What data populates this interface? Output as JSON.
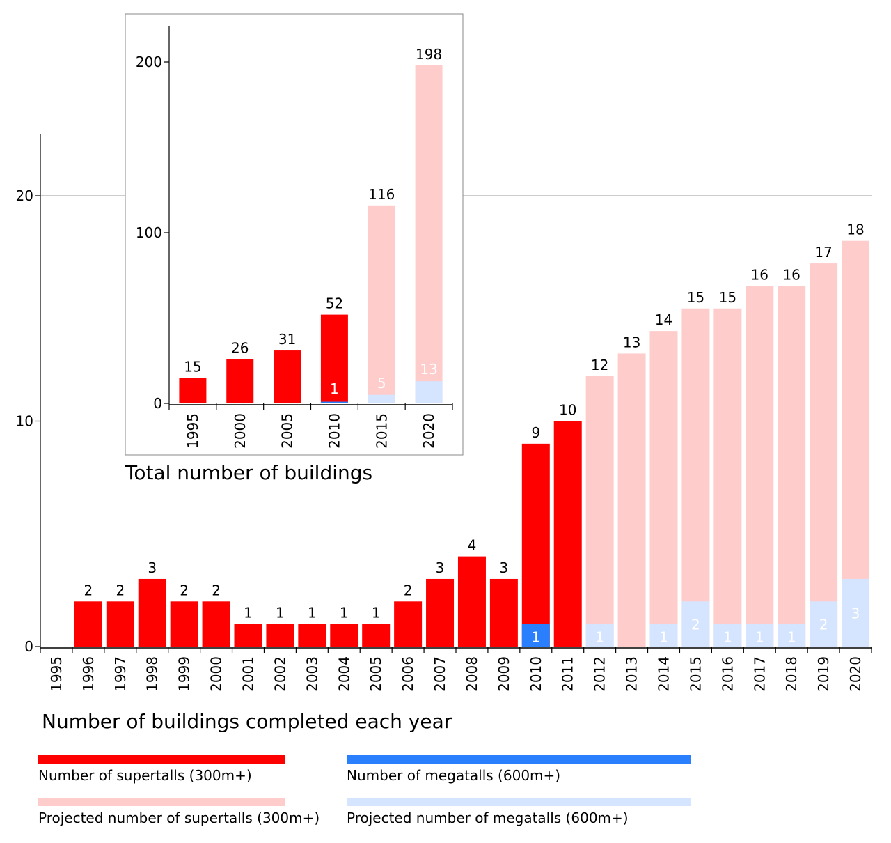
{
  "chart_data": [
    {
      "type": "bar",
      "stacked": true,
      "title": "Number of buildings completed each year",
      "categories": [
        "1995",
        "1996",
        "1997",
        "1998",
        "1999",
        "2000",
        "2001",
        "2002",
        "2003",
        "2004",
        "2005",
        "2006",
        "2007",
        "2008",
        "2009",
        "2010",
        "2011",
        "2012",
        "2013",
        "2014",
        "2015",
        "2016",
        "2017",
        "2018",
        "2019",
        "2020"
      ],
      "totals": [
        0,
        2,
        2,
        3,
        2,
        2,
        1,
        1,
        1,
        1,
        1,
        2,
        3,
        4,
        3,
        9,
        10,
        12,
        13,
        14,
        15,
        15,
        16,
        16,
        17,
        18
      ],
      "megatalls": [
        0,
        0,
        0,
        0,
        0,
        0,
        0,
        0,
        0,
        0,
        0,
        0,
        0,
        0,
        0,
        1,
        0,
        1,
        0,
        1,
        2,
        1,
        1,
        1,
        2,
        3
      ],
      "projected": [
        false,
        false,
        false,
        false,
        false,
        false,
        false,
        false,
        false,
        false,
        false,
        false,
        false,
        false,
        false,
        false,
        false,
        true,
        true,
        true,
        true,
        true,
        true,
        true,
        true,
        true
      ],
      "yticks": [
        0,
        10,
        20
      ],
      "ylim": [
        0,
        23
      ],
      "grid": true
    },
    {
      "type": "bar",
      "stacked": true,
      "title": "Total number of buildings",
      "categories": [
        "1995",
        "2000",
        "2005",
        "2010",
        "2015",
        "2020"
      ],
      "totals": [
        15,
        26,
        31,
        52,
        116,
        198
      ],
      "megatalls": [
        0,
        0,
        0,
        1,
        5,
        13
      ],
      "projected": [
        false,
        false,
        false,
        false,
        true,
        true
      ],
      "yticks": [
        0,
        100,
        200
      ],
      "ylim": [
        0,
        222
      ],
      "grid": false
    }
  ],
  "legend": [
    {
      "label": "Number of supertalls (300m+)",
      "color": "#ff0000"
    },
    {
      "label": "Number of megatalls (600m+)",
      "color": "#2a7fff"
    },
    {
      "label": "Projected number of supertalls (300m+)",
      "color": "#ffcccc"
    },
    {
      "label": "Projected number of megatalls (600m+)",
      "color": "#d5e5ff"
    }
  ],
  "colors": {
    "supertall": "#ff0000",
    "megatall": "#2a7fff",
    "projected_supertall": "#ffcccc",
    "projected_megatall": "#d5e5ff"
  }
}
